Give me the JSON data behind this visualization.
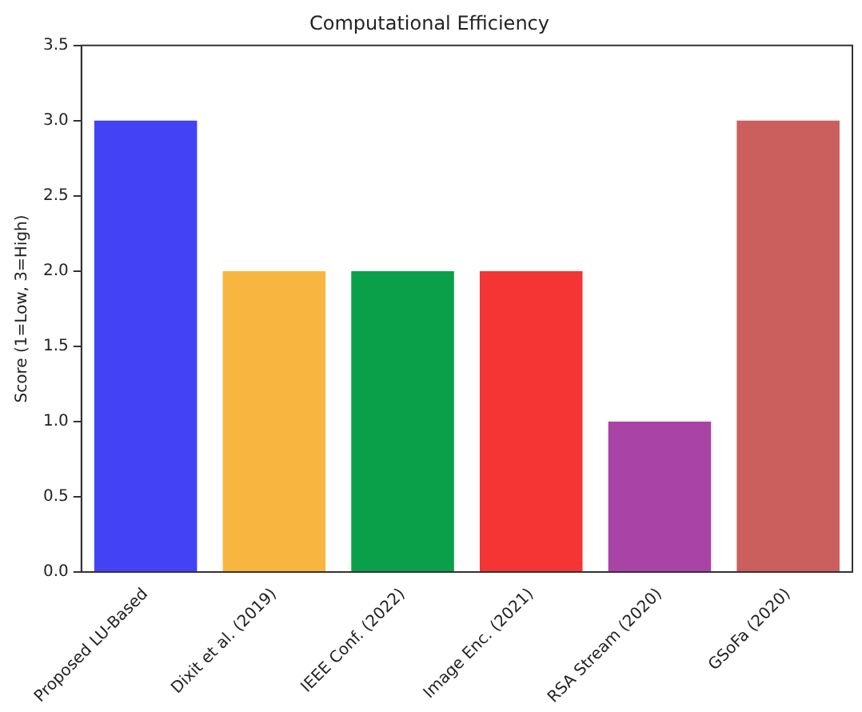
{
  "chart_data": {
    "type": "bar",
    "title": "Computational Efficiency",
    "ylabel": "Score (1=Low, 3=High)",
    "categories": [
      "Proposed LU-Based",
      "Dixit et al. (2019)",
      "IEEE Conf. (2022)",
      "Image Enc. (2021)",
      "RSA Stream (2020)",
      "GSoFa (2020)"
    ],
    "values": [
      3,
      2,
      2,
      2,
      1,
      3
    ],
    "colors": [
      "#4343f5",
      "#f8b640",
      "#0aa04a",
      "#f53434",
      "#a943a5",
      "#cb5f5e"
    ],
    "ylim": [
      0,
      3.5
    ],
    "yticks": [
      {
        "value": 0,
        "label": "0.0"
      },
      0.5,
      {
        "value": 1,
        "label": "1.0"
      },
      1.5,
      {
        "value": 2,
        "label": "2.0"
      },
      2.5,
      {
        "value": 3,
        "label": "3.0"
      },
      3.5
    ],
    "grid": false,
    "legend": false
  }
}
